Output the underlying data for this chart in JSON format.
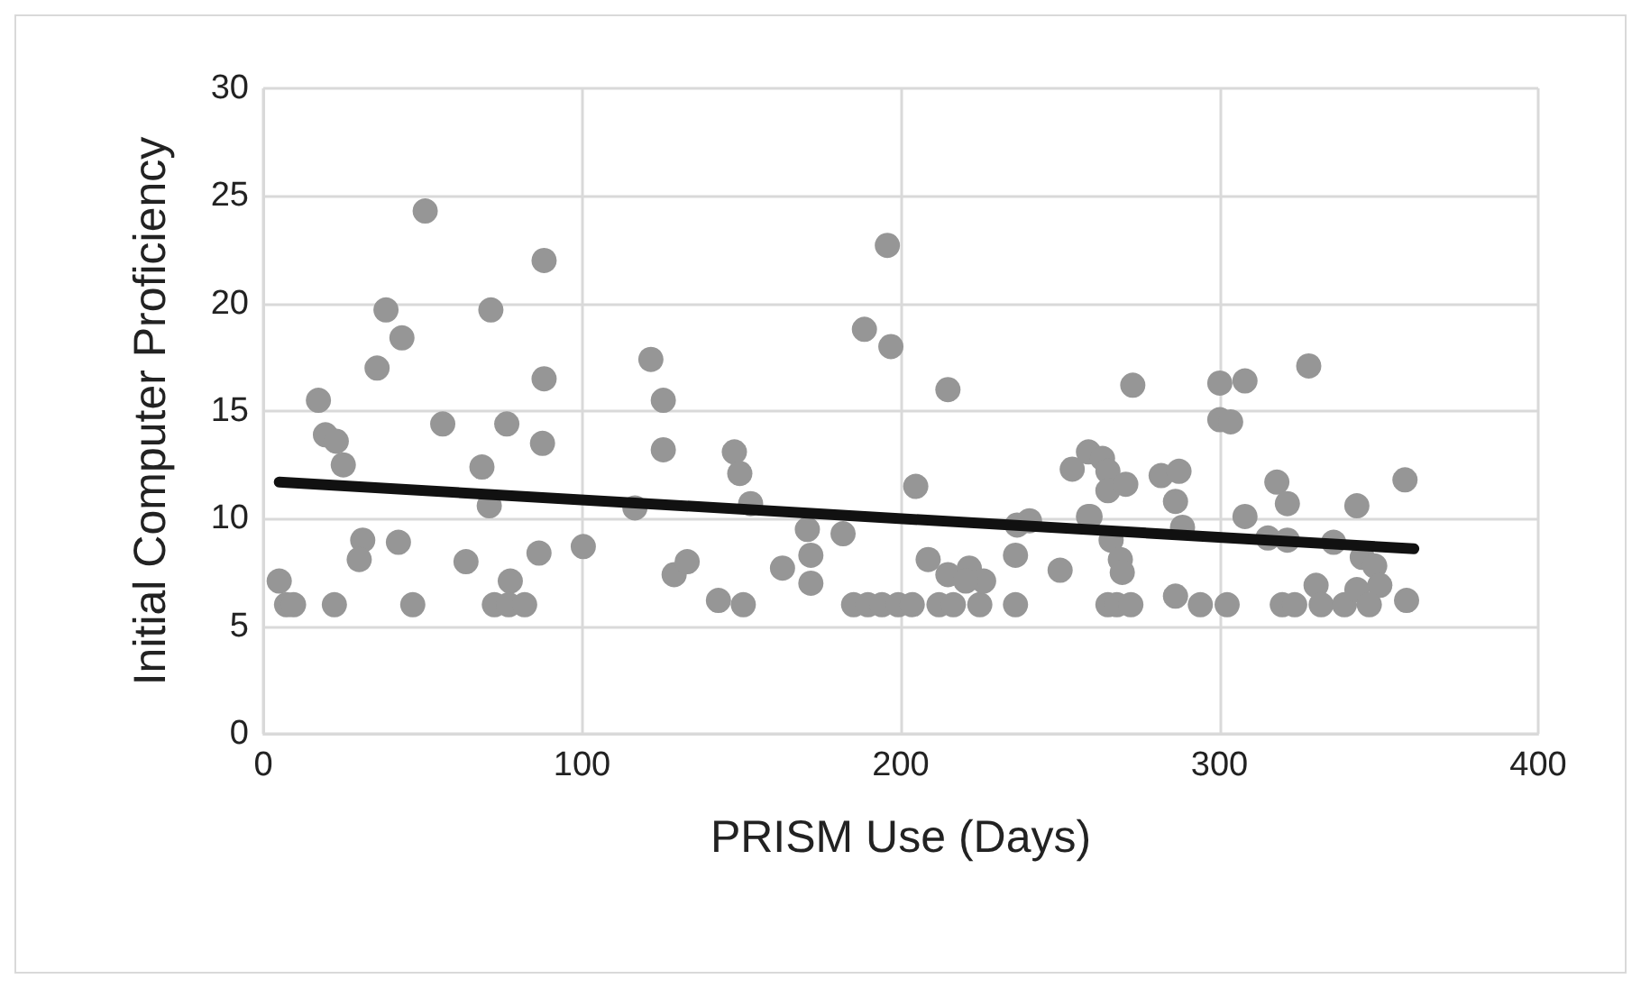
{
  "chart_data": {
    "type": "scatter",
    "xlabel": "PRISM Use (Days)",
    "ylabel": "Initial Computer Proficiency",
    "xlim": [
      0,
      400
    ],
    "xticks": [
      0,
      100,
      200,
      300,
      400
    ],
    "ylim": [
      0,
      30
    ],
    "yticks": [
      0,
      5,
      10,
      15,
      20,
      25,
      30
    ],
    "grid": true,
    "marker": "circle",
    "series": [
      {
        "color": "#969696",
        "x": [
          5,
          7.3,
          9.5,
          17.3,
          19.5,
          22.9,
          25.1,
          31.2,
          30.1,
          22.3,
          42.4,
          46.9,
          50.8,
          88.1,
          38.5,
          71.4,
          43.5,
          35.7,
          88.1,
          56.3,
          76.4,
          87.6,
          68.6,
          70.9,
          116.6,
          121.6,
          125.5,
          125.5,
          63.6,
          86.5,
          100.4,
          77.5,
          72.5,
          77,
          82,
          128.9,
          133,
          142.8,
          150.6,
          195.8,
          188.6,
          196.9,
          214.8,
          147.8,
          149.5,
          152.9,
          204.7,
          170.7,
          171.8,
          171.8,
          181.9,
          162.9,
          185.2,
          189.7,
          194.1,
          199.2,
          203.6,
          212,
          216.5,
          224.8,
          236,
          208.6,
          214.8,
          221.5,
          226,
          220.4,
          236,
          236.5,
          240.4,
          250,
          253.8,
          258.9,
          263.3,
          258.9,
          265,
          272.8,
          300.1,
          308,
          328,
          300.1,
          303.5,
          265,
          265,
          270.6,
          281.7,
          287.3,
          286.2,
          259.4,
          288.4,
          266,
          268.9,
          269.5,
          267.8,
          272.2,
          286.2,
          294,
          302.4,
          308,
          318,
          321.3,
          315.2,
          321.3,
          335.8,
          343.1,
          358.2,
          344.8,
          348.7,
          350.3,
          330.3,
          319.7,
          323.6,
          331.9,
          339.2,
          343.1,
          347,
          358.7
        ],
        "values": [
          7.1,
          6,
          6,
          15.5,
          13.9,
          13.6,
          12.5,
          9,
          8.1,
          6,
          8.9,
          6,
          24.3,
          22,
          19.7,
          19.7,
          18.4,
          17,
          16.5,
          14.4,
          14.4,
          13.5,
          12.4,
          10.6,
          10.5,
          17.4,
          15.5,
          13.2,
          8,
          8.4,
          8.7,
          7.1,
          6,
          6,
          6,
          7.4,
          8,
          6.2,
          6,
          22.7,
          18.8,
          18,
          16,
          13.1,
          12.1,
          10.7,
          11.5,
          9.5,
          8.3,
          7,
          9.3,
          7.7,
          6,
          6,
          6,
          6,
          6,
          6,
          6,
          6,
          6,
          8.1,
          7.4,
          7.7,
          7.1,
          7.1,
          8.3,
          9.7,
          9.9,
          7.6,
          12.3,
          13.1,
          12.8,
          10.1,
          6,
          16.2,
          16.3,
          16.4,
          17.1,
          14.6,
          14.5,
          12.2,
          11.3,
          11.6,
          12,
          12.2,
          10.8,
          10.1,
          9.6,
          9,
          8.1,
          7.5,
          6,
          6,
          6.4,
          6,
          6,
          10.1,
          11.7,
          10.7,
          9.1,
          9,
          8.9,
          10.6,
          11.8,
          8.2,
          7.8,
          6.9,
          6.9,
          6,
          6,
          6,
          6,
          6.7,
          6,
          6.2
        ]
      },
      {
        "type": "line",
        "color": "#111111",
        "marker": "none",
        "x": [
          5,
          361
        ],
        "values": [
          11.7,
          8.6
        ]
      }
    ]
  }
}
